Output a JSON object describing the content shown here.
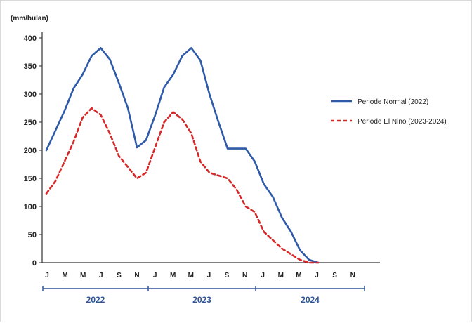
{
  "chart_data": {
    "type": "line",
    "ylabel": "(mm/bulan)",
    "ylim": [
      0,
      400
    ],
    "yticks": [
      0,
      50,
      100,
      150,
      200,
      250,
      300,
      350,
      400
    ],
    "month_labels": [
      "J",
      "M",
      "M",
      "J",
      "S",
      "N",
      "J",
      "M",
      "M",
      "J",
      "S",
      "N",
      "J",
      "M",
      "M",
      "J",
      "S",
      "N"
    ],
    "years": [
      "2022",
      "2023",
      "2024"
    ],
    "legend_position": "right",
    "series": [
      {
        "name": "Periode Normal (2022)",
        "color": "#2f5aa8",
        "dash": "solid",
        "values": [
          200,
          235,
          270,
          310,
          335,
          368,
          382,
          362,
          320,
          275,
          205,
          218,
          262,
          312,
          335,
          368,
          382,
          360,
          300,
          250,
          203,
          203,
          203,
          180,
          140,
          117,
          80,
          55,
          22,
          5,
          0
        ]
      },
      {
        "name": "Periode El Nino (2023-2024)",
        "color": "#d62828",
        "dash": "dashed",
        "values": [
          123,
          145,
          180,
          215,
          258,
          275,
          263,
          230,
          190,
          170,
          150,
          160,
          205,
          250,
          268,
          255,
          230,
          180,
          160,
          155,
          150,
          130,
          100,
          90,
          55,
          40,
          25,
          15,
          5,
          0,
          0
        ]
      }
    ]
  }
}
